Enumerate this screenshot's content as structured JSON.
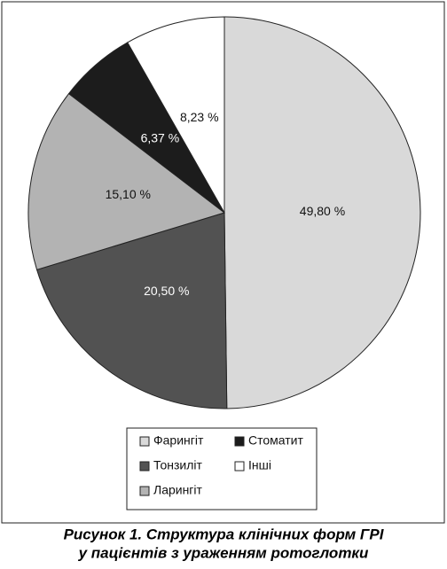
{
  "chart_data": {
    "type": "pie",
    "title": [
      "Рисунок 1. Структура клінічних форм ГРІ",
      "у пацієнтів з ураженням ротоглотки"
    ],
    "categories": [
      "Фарингіт",
      "Тонзиліт",
      "Ларингіт",
      "Стоматит",
      "Інші"
    ],
    "values": [
      49.8,
      20.5,
      15.1,
      6.37,
      8.23
    ],
    "value_labels": [
      "49,80 %",
      "20,50 %",
      "15,10 %",
      "6,37 %",
      "8,23 %"
    ],
    "colors": [
      "#d9d9d9",
      "#525252",
      "#b3b3b3",
      "#1c1c1c",
      "#ffffff"
    ],
    "legend": "bottom"
  }
}
